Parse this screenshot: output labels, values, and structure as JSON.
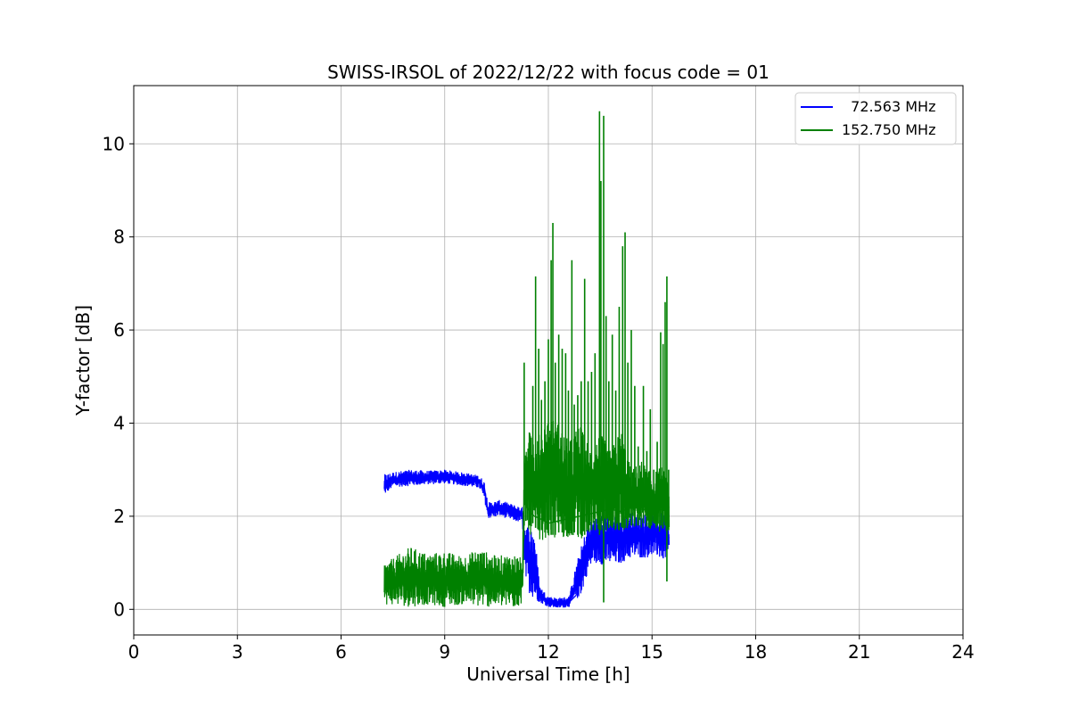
{
  "chart_data": {
    "type": "line",
    "title": "SWISS-IRSOL of 2022/12/22 with focus code = 01",
    "xlabel": "Universal Time [h]",
    "ylabel": "Y-factor [dB]",
    "xlim": [
      0,
      24
    ],
    "ylim": [
      -0.55,
      11.25
    ],
    "xticks": [
      0,
      3,
      6,
      9,
      12,
      15,
      18,
      21,
      24
    ],
    "yticks": [
      0,
      2,
      4,
      6,
      8,
      10
    ],
    "grid": true,
    "legend_position": "top-right",
    "series": [
      {
        "name": "  72.563 MHz",
        "color": "#0000ff",
        "points": [
          [
            7.25,
            2.55
          ],
          [
            7.5,
            2.78
          ],
          [
            8.0,
            2.8
          ],
          [
            8.5,
            2.82
          ],
          [
            9.0,
            2.85
          ],
          [
            9.5,
            2.8
          ],
          [
            10.0,
            2.72
          ],
          [
            10.15,
            2.6
          ],
          [
            10.25,
            2.1
          ],
          [
            10.6,
            2.15
          ],
          [
            11.0,
            2.05
          ],
          [
            11.25,
            2.0
          ],
          [
            11.3,
            1.6
          ],
          [
            11.45,
            0.85
          ],
          [
            11.6,
            0.55
          ],
          [
            11.75,
            0.3
          ],
          [
            12.0,
            0.15
          ],
          [
            12.3,
            0.12
          ],
          [
            12.6,
            0.15
          ],
          [
            12.8,
            0.3
          ],
          [
            12.95,
            0.7
          ],
          [
            13.1,
            1.0
          ],
          [
            13.3,
            1.35
          ],
          [
            13.6,
            1.4
          ],
          [
            14.0,
            1.45
          ],
          [
            14.4,
            1.5
          ],
          [
            14.8,
            1.55
          ],
          [
            15.1,
            1.6
          ],
          [
            15.3,
            1.4
          ],
          [
            15.5,
            1.55
          ]
        ],
        "envelope": [
          [
            7.25,
            2.45,
            2.9
          ],
          [
            7.5,
            2.62,
            2.95
          ],
          [
            8.0,
            2.65,
            3.0
          ],
          [
            8.5,
            2.68,
            2.98
          ],
          [
            9.0,
            2.7,
            3.0
          ],
          [
            9.5,
            2.66,
            2.95
          ],
          [
            10.0,
            2.6,
            2.88
          ],
          [
            10.15,
            2.35,
            2.75
          ],
          [
            10.25,
            1.95,
            2.3
          ],
          [
            10.6,
            2.0,
            2.35
          ],
          [
            11.0,
            1.9,
            2.25
          ],
          [
            11.25,
            1.85,
            2.2
          ],
          [
            11.3,
            0.7,
            1.95
          ],
          [
            11.45,
            0.35,
            1.8
          ],
          [
            11.6,
            0.2,
            1.7
          ],
          [
            11.75,
            0.15,
            0.5
          ],
          [
            12.0,
            0.05,
            0.28
          ],
          [
            12.3,
            0.02,
            0.25
          ],
          [
            12.6,
            0.05,
            0.28
          ],
          [
            12.8,
            0.2,
            0.95
          ],
          [
            12.95,
            0.3,
            1.35
          ],
          [
            13.1,
            0.7,
            1.75
          ],
          [
            13.3,
            1.0,
            2.0
          ],
          [
            13.6,
            0.95,
            2.05
          ],
          [
            14.0,
            0.95,
            2.1
          ],
          [
            14.4,
            1.1,
            2.1
          ],
          [
            14.8,
            1.1,
            2.05
          ],
          [
            15.1,
            1.15,
            2.05
          ],
          [
            15.3,
            1.05,
            2.1
          ],
          [
            15.5,
            1.1,
            2.0
          ]
        ]
      },
      {
        "name": "152.750 MHz",
        "color": "#008000",
        "points": [
          [
            7.25,
            0.55
          ],
          [
            7.5,
            0.6
          ],
          [
            8.0,
            0.65
          ],
          [
            8.5,
            0.6
          ],
          [
            9.0,
            0.65
          ],
          [
            9.5,
            0.6
          ],
          [
            10.0,
            0.62
          ],
          [
            10.5,
            0.6
          ],
          [
            11.0,
            0.55
          ],
          [
            11.25,
            0.55
          ],
          [
            11.3,
            2.3
          ],
          [
            11.45,
            2.1
          ],
          [
            11.6,
            2.0
          ],
          [
            11.75,
            1.95
          ],
          [
            12.0,
            1.85
          ],
          [
            12.3,
            1.9
          ],
          [
            12.6,
            1.95
          ],
          [
            12.9,
            2.0
          ],
          [
            13.2,
            2.05
          ],
          [
            13.5,
            2.1
          ],
          [
            13.8,
            2.15
          ],
          [
            14.1,
            2.1
          ],
          [
            14.4,
            2.2
          ],
          [
            14.7,
            2.15
          ],
          [
            15.0,
            2.1
          ],
          [
            15.3,
            2.15
          ],
          [
            15.5,
            2.2
          ]
        ],
        "envelope": [
          [
            7.25,
            0.1,
            1.0
          ],
          [
            7.5,
            0.1,
            1.1
          ],
          [
            8.0,
            0.05,
            1.35
          ],
          [
            8.5,
            0.1,
            1.2
          ],
          [
            9.0,
            0.05,
            1.25
          ],
          [
            9.5,
            0.1,
            1.15
          ],
          [
            10.0,
            0.05,
            1.3
          ],
          [
            10.5,
            0.05,
            1.15
          ],
          [
            11.0,
            0.02,
            1.2
          ],
          [
            11.25,
            0.1,
            1.1
          ],
          [
            11.3,
            1.7,
            3.2
          ],
          [
            11.45,
            1.6,
            4.5
          ],
          [
            11.6,
            1.55,
            3.5
          ],
          [
            11.75,
            1.5,
            3.8
          ],
          [
            12.0,
            1.45,
            4.2
          ],
          [
            12.3,
            1.5,
            4.0
          ],
          [
            12.6,
            1.55,
            3.6
          ],
          [
            12.9,
            1.5,
            4.0
          ],
          [
            13.2,
            1.6,
            3.5
          ],
          [
            13.5,
            1.6,
            3.8
          ],
          [
            13.8,
            1.7,
            3.4
          ],
          [
            14.1,
            1.6,
            3.9
          ],
          [
            14.4,
            1.7,
            3.0
          ],
          [
            14.7,
            1.75,
            3.2
          ],
          [
            15.0,
            1.7,
            2.9
          ],
          [
            15.3,
            1.65,
            3.1
          ],
          [
            15.5,
            1.7,
            2.6
          ]
        ],
        "spikes": [
          [
            11.3,
            1.8,
            5.3
          ],
          [
            11.35,
            1.9,
            3.3
          ],
          [
            11.45,
            1.8,
            3.8
          ],
          [
            11.55,
            1.85,
            4.8
          ],
          [
            11.63,
            1.75,
            7.15
          ],
          [
            11.72,
            1.7,
            5.6
          ],
          [
            11.8,
            1.7,
            4.5
          ],
          [
            11.9,
            1.65,
            4.9
          ],
          [
            12.0,
            1.65,
            5.8
          ],
          [
            12.08,
            1.6,
            7.5
          ],
          [
            12.13,
            1.6,
            8.3
          ],
          [
            12.2,
            1.6,
            5.3
          ],
          [
            12.3,
            1.65,
            5.9
          ],
          [
            12.4,
            1.65,
            5.6
          ],
          [
            12.5,
            1.7,
            5.5
          ],
          [
            12.58,
            1.7,
            4.7
          ],
          [
            12.68,
            1.6,
            7.5
          ],
          [
            12.75,
            1.65,
            4.4
          ],
          [
            12.85,
            1.6,
            4.6
          ],
          [
            12.95,
            1.6,
            4.9
          ],
          [
            13.05,
            1.6,
            7.1
          ],
          [
            13.15,
            1.7,
            4.9
          ],
          [
            13.25,
            1.7,
            5.1
          ],
          [
            13.35,
            1.7,
            5.5
          ],
          [
            13.48,
            1.6,
            10.7
          ],
          [
            13.52,
            1.7,
            9.2
          ],
          [
            13.6,
            0.15,
            10.6
          ],
          [
            13.67,
            1.7,
            6.3
          ],
          [
            13.75,
            1.75,
            4.9
          ],
          [
            13.85,
            1.75,
            5.9
          ],
          [
            13.95,
            1.75,
            4.7
          ],
          [
            14.05,
            1.7,
            6.5
          ],
          [
            14.15,
            1.75,
            7.8
          ],
          [
            14.22,
            1.75,
            8.1
          ],
          [
            14.3,
            1.8,
            5.3
          ],
          [
            14.4,
            1.8,
            6.0
          ],
          [
            14.5,
            1.85,
            4.8
          ],
          [
            14.6,
            1.8,
            3.5
          ],
          [
            14.75,
            1.85,
            4.8
          ],
          [
            14.85,
            1.8,
            3.4
          ],
          [
            14.95,
            1.8,
            4.3
          ],
          [
            15.05,
            1.85,
            3.0
          ],
          [
            15.15,
            1.8,
            3.6
          ],
          [
            15.25,
            1.8,
            5.95
          ],
          [
            15.32,
            1.75,
            5.7
          ],
          [
            15.38,
            1.8,
            6.6
          ],
          [
            15.43,
            0.6,
            7.15
          ],
          [
            15.48,
            1.7,
            3.0
          ]
        ]
      }
    ]
  }
}
